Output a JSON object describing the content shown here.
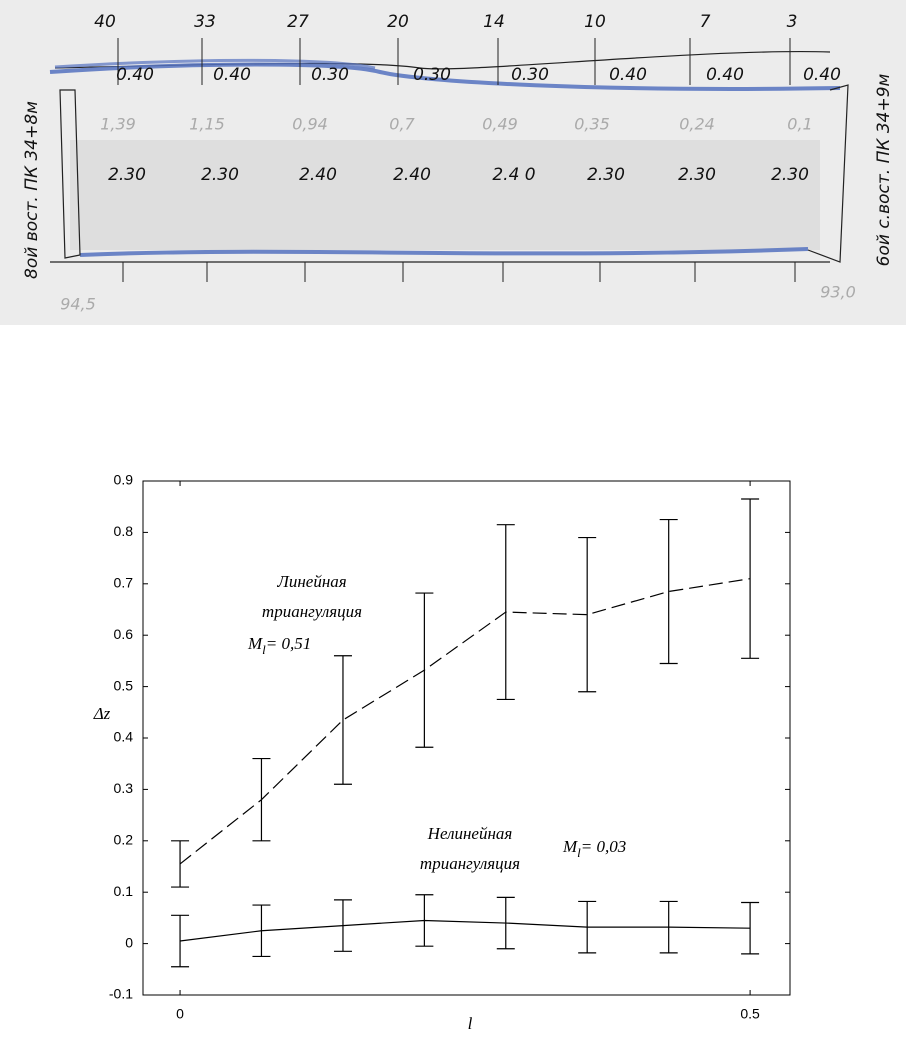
{
  "sketch": {
    "stations": [
      "40",
      "33",
      "27",
      "20",
      "14",
      "10",
      "7",
      "3"
    ],
    "depths": [
      "0.40",
      "0.40",
      "0.30",
      "0.30",
      "0.30",
      "0.40",
      "0.40",
      "0.40"
    ],
    "gray_values": [
      "1,39",
      "1,15",
      "0,94",
      "0,7",
      "0,49",
      "0,35",
      "0,24",
      "0,1"
    ],
    "widths": [
      "2.30",
      "2.30",
      "2.40",
      "2.40",
      "2.4 0",
      "2.30",
      "2.30",
      "2.30"
    ],
    "left_label": "8ой вост. ПК 34+8м",
    "right_label": "6ой с.вост. ПК 34+9м",
    "left_bottom": "94,5",
    "right_bottom": "93,0"
  },
  "chart_data": {
    "type": "errorbar",
    "x_label": "l",
    "y_label": "Δz",
    "x": [
      0,
      0.0714,
      0.1429,
      0.2143,
      0.2857,
      0.3571,
      0.4286,
      0.5
    ],
    "xlim": [
      -0.0325,
      0.535
    ],
    "xticks": [
      0,
      0.5
    ],
    "ylim": [
      -0.1,
      0.9
    ],
    "yticks": [
      -0.1,
      0,
      0.1,
      0.2,
      0.3,
      0.4,
      0.5,
      0.6,
      0.7,
      0.8,
      0.9
    ],
    "series": [
      {
        "color": "#000000",
        "style": "dashed",
        "values": [
          0.155,
          0.28,
          0.435,
          0.532,
          0.645,
          0.64,
          0.685,
          0.71
        ],
        "errors": [
          0.045,
          0.08,
          0.125,
          0.15,
          0.17,
          0.15,
          0.14,
          0.155
        ]
      },
      {
        "color": "#000000",
        "style": "solid",
        "values": [
          0.005,
          0.025,
          0.035,
          0.045,
          0.04,
          0.032,
          0.032,
          0.03
        ],
        "errors": [
          0.05,
          0.05,
          0.05,
          0.05,
          0.05,
          0.05,
          0.05,
          0.05
        ]
      }
    ],
    "annotations": [
      {
        "lines": [
          "Линейная",
          "триангуляция"
        ],
        "symbol": "M",
        "sub": "l",
        "rest": "= 0,51"
      },
      {
        "lines": [
          "Нелинейная",
          "триангуляция"
        ],
        "symbol": "M",
        "sub": "l",
        "rest": "= 0,03"
      }
    ]
  }
}
